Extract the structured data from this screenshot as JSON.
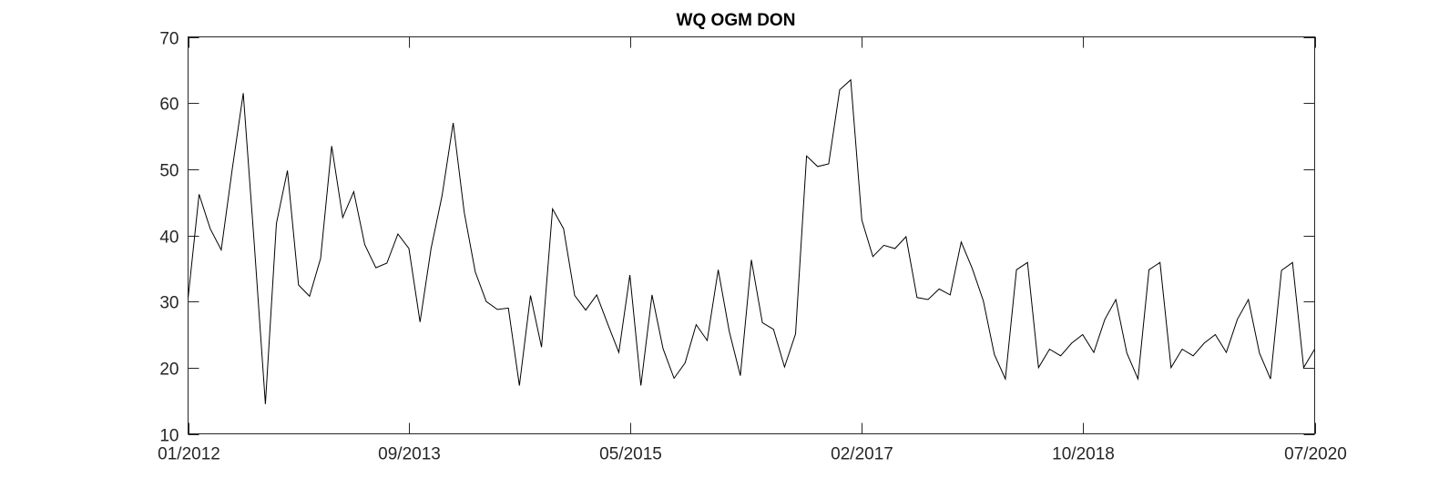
{
  "chart_data": {
    "type": "line",
    "title": "WQ OGM DON",
    "xlabel": "",
    "ylabel": "",
    "ylim": [
      10,
      70
    ],
    "xlim": [
      "2012-01",
      "2020-07"
    ],
    "grid": false,
    "box": true,
    "x_ticks": [
      "01/2012",
      "09/2013",
      "05/2015",
      "02/2017",
      "10/2018",
      "07/2020"
    ],
    "y_ticks": [
      10,
      20,
      30,
      40,
      50,
      60,
      70
    ],
    "series": [
      {
        "color": "#000000",
        "x": [
          "2012-01",
          "2012-02",
          "2012-03",
          "2012-04",
          "2012-05",
          "2012-06",
          "2012-07",
          "2012-08",
          "2012-09",
          "2012-10",
          "2012-11",
          "2012-12",
          "2013-01",
          "2013-02",
          "2013-03",
          "2013-04",
          "2013-05",
          "2013-06",
          "2013-07",
          "2013-08",
          "2013-09",
          "2013-10",
          "2013-11",
          "2013-12",
          "2014-01",
          "2014-02",
          "2014-03",
          "2014-04",
          "2014-05",
          "2014-06",
          "2014-07",
          "2014-08",
          "2014-09",
          "2014-10",
          "2014-11",
          "2014-12",
          "2015-01",
          "2015-02",
          "2015-03",
          "2015-04",
          "2015-05",
          "2015-06",
          "2015-07",
          "2015-08",
          "2015-09",
          "2015-10",
          "2015-11",
          "2015-12",
          "2016-01",
          "2016-02",
          "2016-03",
          "2016-04",
          "2016-05",
          "2016-06",
          "2016-07",
          "2016-08",
          "2016-09",
          "2016-10",
          "2016-11",
          "2016-12",
          "2017-01",
          "2017-02",
          "2017-03",
          "2017-04",
          "2017-05",
          "2017-06",
          "2017-07",
          "2017-08",
          "2017-09",
          "2017-10",
          "2017-11",
          "2017-12",
          "2018-01",
          "2018-02",
          "2018-03",
          "2018-04",
          "2018-05",
          "2018-06",
          "2018-07",
          "2018-08",
          "2018-09",
          "2018-10",
          "2018-11",
          "2018-12",
          "2019-01",
          "2019-02",
          "2019-03",
          "2019-04",
          "2019-05",
          "2019-06",
          "2019-07",
          "2019-08",
          "2019-09",
          "2019-10",
          "2019-11",
          "2019-12",
          "2020-01",
          "2020-02",
          "2020-03",
          "2020-04",
          "2020-05",
          "2020-06",
          "2020-07"
        ],
        "y": [
          30.5,
          46.2,
          41.0,
          37.8,
          50.0,
          61.5,
          38.5,
          14.5,
          41.8,
          49.8,
          32.5,
          30.8,
          36.5,
          53.5,
          42.7,
          46.6,
          38.6,
          35.1,
          35.8,
          40.2,
          38.0,
          26.9,
          38.0,
          46.0,
          57.0,
          43.5,
          34.5,
          30.0,
          28.8,
          29.0,
          17.3,
          30.9,
          23.1,
          44.0,
          41.0,
          30.9,
          28.7,
          31.0,
          26.6,
          22.3,
          34.0,
          17.3,
          31.0,
          22.9,
          18.4,
          20.7,
          26.5,
          24.1,
          34.8,
          25.5,
          18.8,
          36.3,
          26.8,
          25.8,
          20.1,
          25.1,
          52.0,
          50.4,
          50.8,
          62.0,
          63.5,
          42.3,
          36.8,
          38.5,
          38.0,
          39.8,
          30.6,
          30.3,
          31.9,
          31.0,
          39.0,
          35.0,
          30.1,
          22.0,
          18.3,
          34.8,
          35.9,
          20.0,
          22.8,
          21.8,
          23.7,
          25.0,
          22.3,
          27.3,
          30.3,
          22.2,
          18.3,
          34.8,
          35.9,
          20.0,
          22.8,
          21.8,
          23.7,
          25.0,
          22.3,
          27.3,
          30.3,
          22.2,
          18.3,
          34.7,
          35.9,
          20.0,
          22.8
        ]
      }
    ]
  }
}
